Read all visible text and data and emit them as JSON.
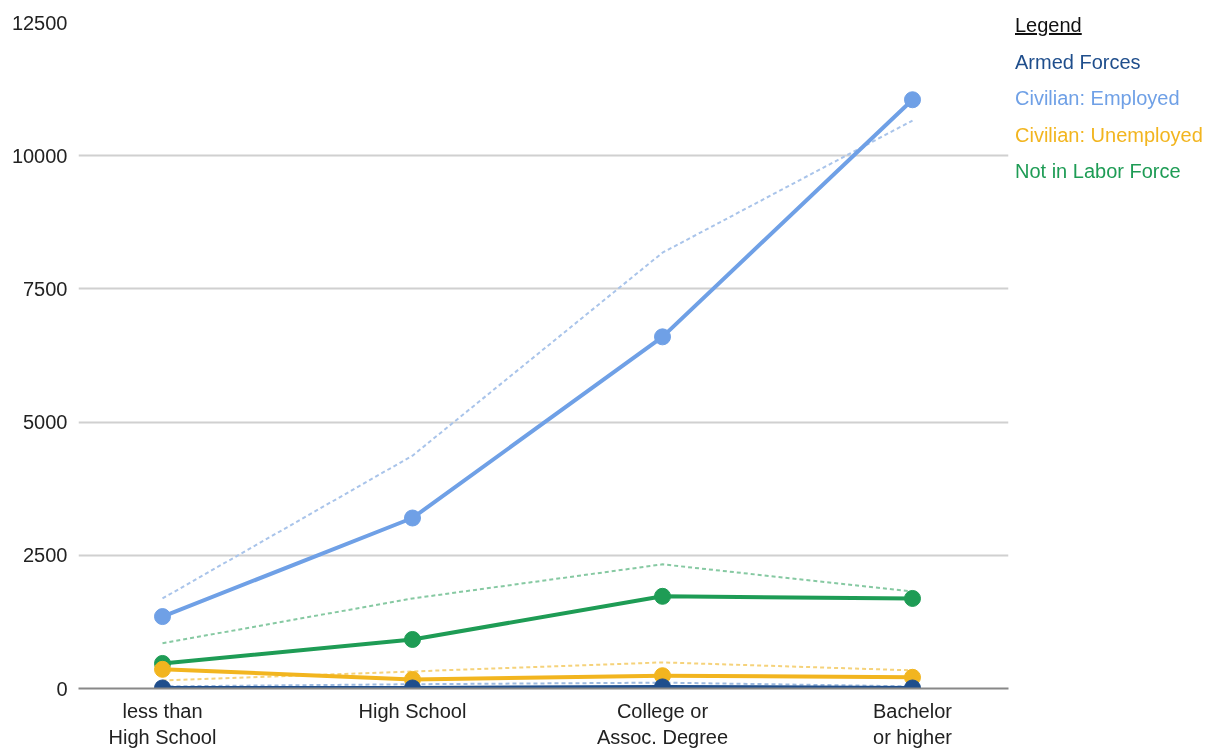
{
  "chart_data": {
    "type": "line",
    "categories": [
      "less than\nHigh School",
      "High School",
      "College or\nAssoc. Degree",
      "Bachelor\nor higher"
    ],
    "ylim": [
      0,
      12500
    ],
    "yticks": [
      0,
      2500,
      5000,
      7500,
      10000,
      12500
    ],
    "grid": "y",
    "legend": "top right",
    "legend_title": "Legend",
    "marker": "circle",
    "series": [
      {
        "name": "Armed Forces",
        "color": "#1f4e8c",
        "values": [
          10,
          10,
          30,
          10
        ]
      },
      {
        "name": "Civilian: Employed",
        "color": "#6fa0e6",
        "values": [
          1350,
          3200,
          6600,
          11050
        ]
      },
      {
        "name": "Civilian: Unemployed",
        "color": "#f2b51f",
        "values": [
          360,
          170,
          240,
          210
        ]
      },
      {
        "name": "Not in Labor Force",
        "color": "#1e9c55",
        "values": [
          470,
          920,
          1730,
          1690
        ]
      },
      {
        "color": "#9fbbe0",
        "line_style": "dashed",
        "marker": "none",
        "values": [
          40,
          80,
          110,
          40
        ]
      },
      {
        "color": "#a9c4ea",
        "line_style": "dashed",
        "marker": "none",
        "values": [
          1690,
          4370,
          8180,
          10660
        ]
      },
      {
        "color": "#f5d27a",
        "line_style": "dashed",
        "marker": "none",
        "values": [
          150,
          320,
          490,
          340
        ]
      },
      {
        "color": "#86c9a2",
        "line_style": "dashed",
        "marker": "none",
        "values": [
          850,
          1690,
          2330,
          1820
        ]
      }
    ]
  }
}
